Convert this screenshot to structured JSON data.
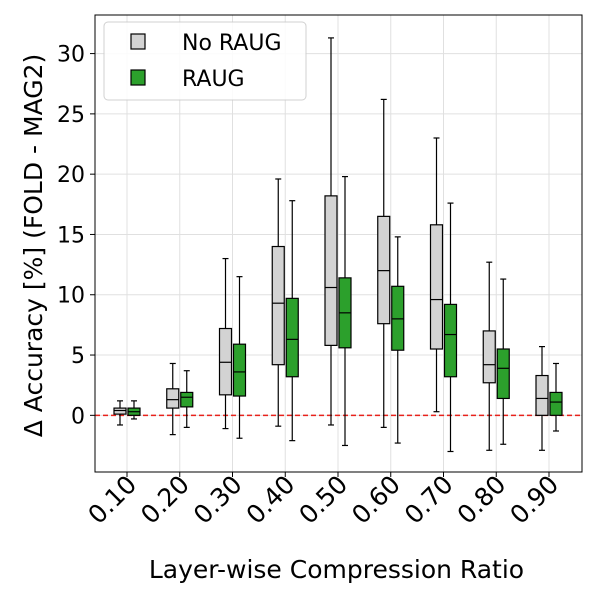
{
  "chart_data": {
    "type": "box",
    "xlabel": "Layer-wise Compression Ratio",
    "ylabel": "Δ Accuracy [%] (FOLD - MAG2)",
    "categories": [
      "0.10",
      "0.20",
      "0.30",
      "0.40",
      "0.50",
      "0.60",
      "0.70",
      "0.80",
      "0.90"
    ],
    "ylim": [
      -4.7,
      33.2
    ],
    "yticks": [
      0,
      5,
      10,
      15,
      20,
      25,
      30
    ],
    "grid": true,
    "legend_position": "top-left",
    "reference_line": {
      "y": 0,
      "color": "#e8221b",
      "style": "dashed"
    },
    "series": [
      {
        "name": "No RAUG",
        "color": "#d3d3d3",
        "boxes": [
          {
            "min": -0.8,
            "q1": 0.1,
            "median": 0.4,
            "q3": 0.6,
            "max": 1.2
          },
          {
            "min": -1.6,
            "q1": 0.6,
            "median": 1.3,
            "q3": 2.2,
            "max": 4.3
          },
          {
            "min": -1.1,
            "q1": 1.7,
            "median": 4.4,
            "q3": 7.2,
            "max": 13.0
          },
          {
            "min": -0.9,
            "q1": 4.2,
            "median": 9.3,
            "q3": 14.0,
            "max": 19.6
          },
          {
            "min": -0.8,
            "q1": 5.8,
            "median": 10.6,
            "q3": 18.2,
            "max": 31.3
          },
          {
            "min": -1.0,
            "q1": 7.6,
            "median": 12.0,
            "q3": 16.5,
            "max": 26.2
          },
          {
            "min": 0.3,
            "q1": 5.5,
            "median": 9.6,
            "q3": 15.8,
            "max": 23.0
          },
          {
            "min": -2.9,
            "q1": 2.7,
            "median": 4.2,
            "q3": 7.0,
            "max": 12.7
          },
          {
            "min": -2.9,
            "q1": 0.0,
            "median": 1.4,
            "q3": 3.3,
            "max": 5.7
          }
        ]
      },
      {
        "name": "RAUG",
        "color": "#2ca02c",
        "boxes": [
          {
            "min": -0.3,
            "q1": 0.0,
            "median": 0.3,
            "q3": 0.6,
            "max": 1.2
          },
          {
            "min": -1.0,
            "q1": 0.7,
            "median": 1.5,
            "q3": 1.9,
            "max": 3.7
          },
          {
            "min": -1.9,
            "q1": 1.6,
            "median": 3.6,
            "q3": 5.9,
            "max": 11.5
          },
          {
            "min": -2.1,
            "q1": 3.2,
            "median": 6.3,
            "q3": 9.7,
            "max": 17.8
          },
          {
            "min": -2.5,
            "q1": 5.6,
            "median": 8.5,
            "q3": 11.4,
            "max": 19.8
          },
          {
            "min": -2.3,
            "q1": 5.4,
            "median": 8.0,
            "q3": 10.7,
            "max": 14.8
          },
          {
            "min": -3.0,
            "q1": 3.2,
            "median": 6.7,
            "q3": 9.2,
            "max": 17.6
          },
          {
            "min": -2.4,
            "q1": 1.4,
            "median": 3.9,
            "q3": 5.5,
            "max": 11.3
          },
          {
            "min": -1.3,
            "q1": 0.0,
            "median": 1.1,
            "q3": 1.9,
            "max": 4.3
          }
        ]
      }
    ]
  }
}
